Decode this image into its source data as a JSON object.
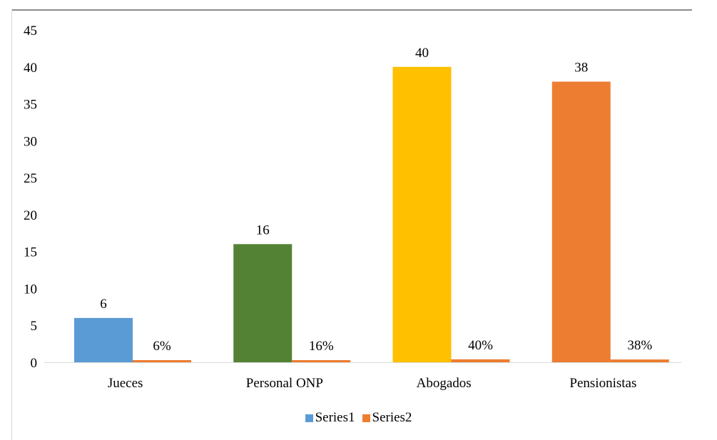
{
  "chart_data": {
    "type": "bar",
    "categories": [
      "Jueces",
      "Personal ONP",
      "Abogados",
      "Pensionistas"
    ],
    "series": [
      {
        "name": "Series1",
        "values": [
          6,
          16,
          40,
          38
        ],
        "labels": [
          "6",
          "16",
          "40",
          "38"
        ],
        "colors": [
          "#5b9bd5",
          "#548235",
          "#ffc000",
          "#ed7d31"
        ]
      },
      {
        "name": "Series2",
        "values": [
          0.06,
          0.16,
          0.4,
          0.38
        ],
        "labels": [
          "6%",
          "16%",
          "40%",
          "38%"
        ],
        "colors": [
          "#ed7d31",
          "#ed7d31",
          "#ed7d31",
          "#ed7d31"
        ]
      }
    ],
    "yticks": [
      "0",
      "5",
      "10",
      "15",
      "20",
      "25",
      "30",
      "35",
      "40",
      "45"
    ],
    "ylim": [
      0,
      45
    ],
    "grid": false,
    "legend": {
      "position": "bottom",
      "items": [
        {
          "label": "Series1",
          "color": "#5b9bd5"
        },
        {
          "label": "Series2",
          "color": "#ed7d31"
        }
      ]
    }
  }
}
